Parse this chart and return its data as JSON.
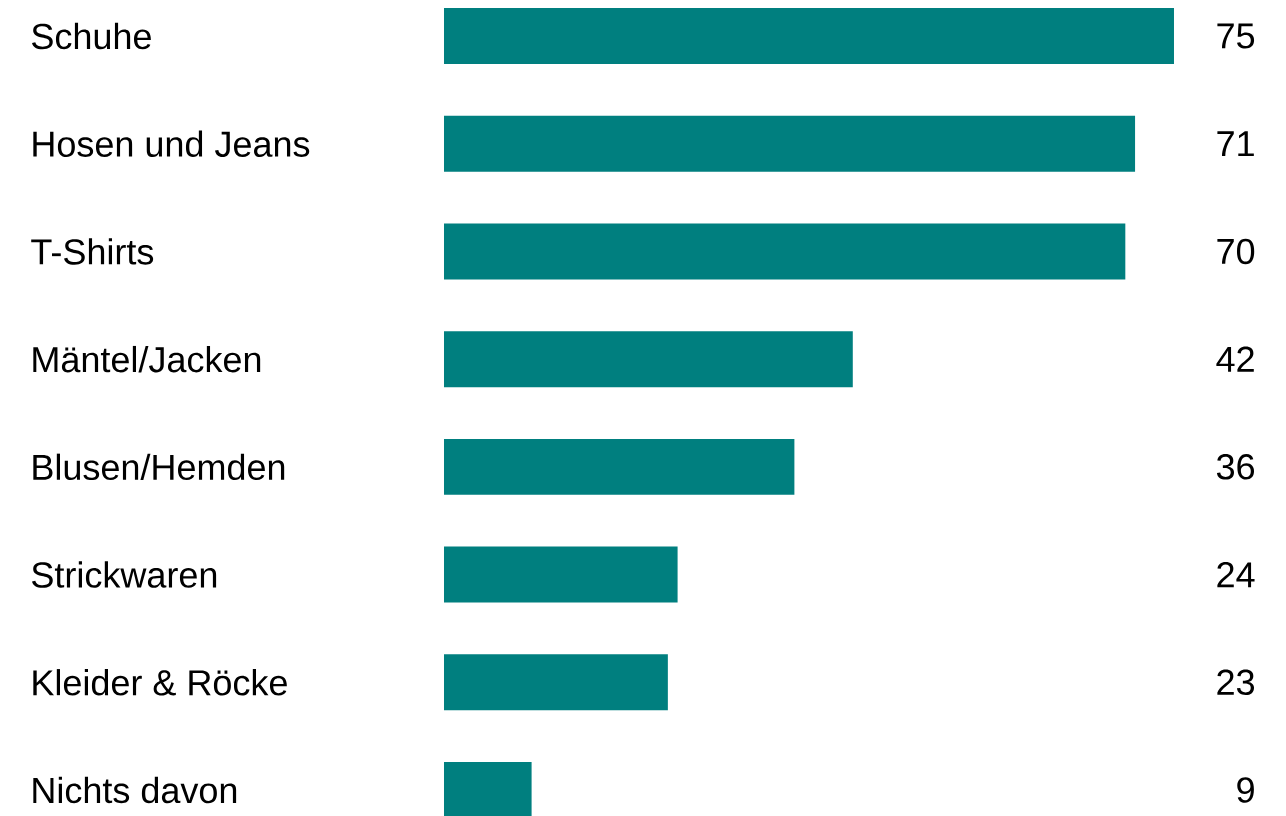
{
  "chart_data": {
    "type": "bar",
    "orientation": "horizontal",
    "categories": [
      "Schuhe",
      "Hosen und Jeans",
      "T-Shirts",
      "Mäntel/Jacken",
      "Blusen/Hemden",
      "Strickwaren",
      "Kleider & Röcke",
      "Nichts davon"
    ],
    "values": [
      75,
      71,
      70,
      42,
      36,
      24,
      23,
      9
    ],
    "color": "#007f7f",
    "data_labels": true
  }
}
